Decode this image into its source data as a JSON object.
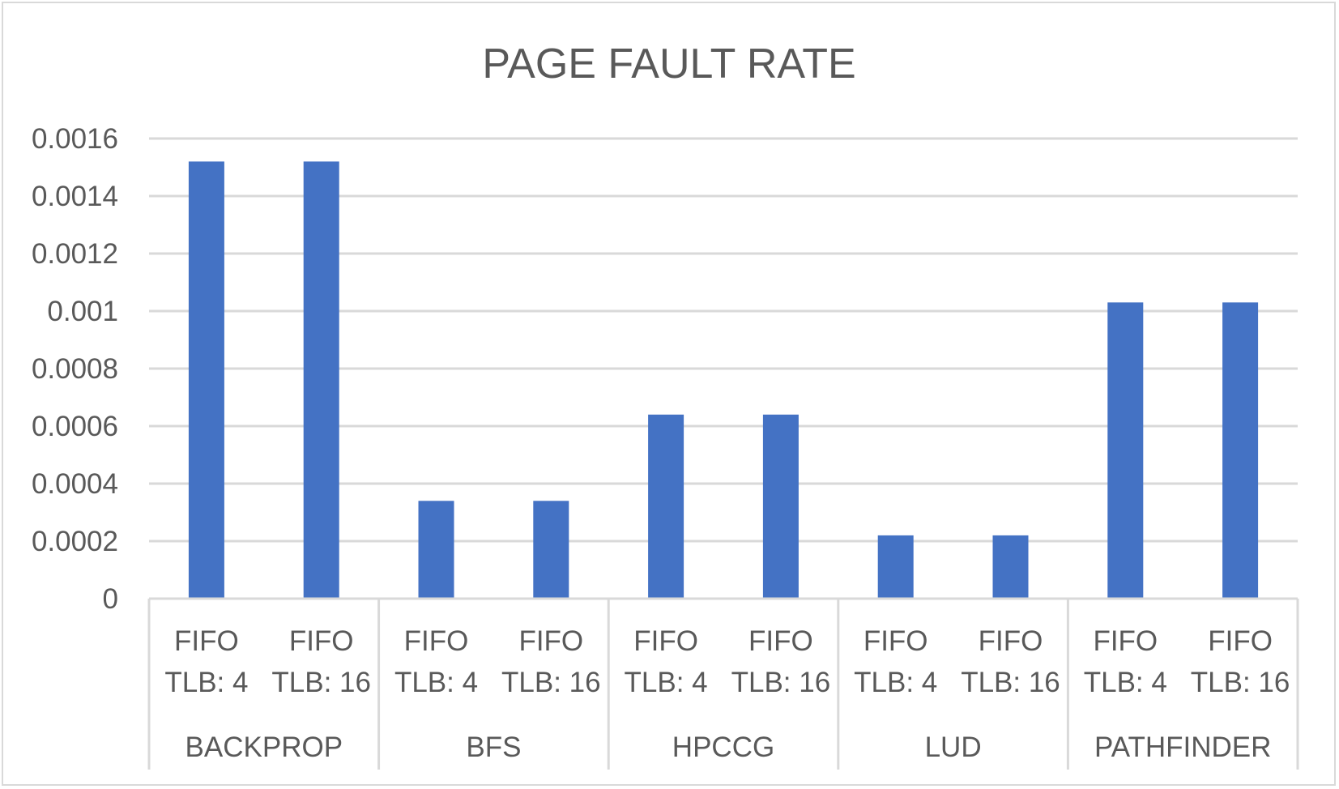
{
  "colors": {
    "bar": "#4472C4",
    "gridline": "#d9d9d9",
    "text": "#595959",
    "background": "#ffffff"
  },
  "chart_data": {
    "type": "bar",
    "title": "PAGE FAULT RATE",
    "xlabel": "",
    "ylabel": "",
    "ylim": [
      0,
      0.0016
    ],
    "y_ticks": [
      "0",
      "0.0002",
      "0.0004",
      "0.0006",
      "0.0008",
      "0.001",
      "0.0012",
      "0.0014",
      "0.0016"
    ],
    "grid": true,
    "legend": "none",
    "groups": [
      {
        "name": "BACKPROP",
        "categories": [
          [
            "FIFO",
            "TLB: 4"
          ],
          [
            "FIFO",
            "TLB: 16"
          ]
        ],
        "values": [
          0.00152,
          0.00152
        ]
      },
      {
        "name": "BFS",
        "categories": [
          [
            "FIFO",
            "TLB: 4"
          ],
          [
            "FIFO",
            "TLB: 16"
          ]
        ],
        "values": [
          0.00034,
          0.00034
        ]
      },
      {
        "name": "HPCCG",
        "categories": [
          [
            "FIFO",
            "TLB: 4"
          ],
          [
            "FIFO",
            "TLB: 16"
          ]
        ],
        "values": [
          0.00064,
          0.00064
        ]
      },
      {
        "name": "LUD",
        "categories": [
          [
            "FIFO",
            "TLB: 4"
          ],
          [
            "FIFO",
            "TLB: 16"
          ]
        ],
        "values": [
          0.00022,
          0.00022
        ]
      },
      {
        "name": "PATHFINDER",
        "categories": [
          [
            "FIFO",
            "TLB: 4"
          ],
          [
            "FIFO",
            "TLB: 16"
          ]
        ],
        "values": [
          0.00103,
          0.00103
        ]
      }
    ]
  }
}
